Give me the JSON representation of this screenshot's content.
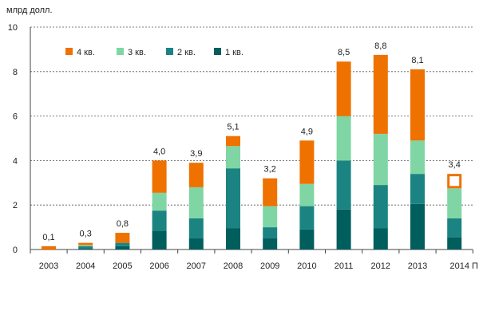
{
  "chart_data": {
    "type": "bar",
    "stacked": true,
    "title": "",
    "ylabel": "млрд долл.",
    "xlabel": "",
    "ylim": [
      0,
      10
    ],
    "yticks": [
      0,
      2,
      4,
      6,
      8,
      10
    ],
    "grid": true,
    "legend_position": "top-left",
    "categories": [
      "2003",
      "2004",
      "2005",
      "2006",
      "2007",
      "2008",
      "2009",
      "2010",
      "2011",
      "2012",
      "2013",
      "2014 П"
    ],
    "totals_labels": [
      "0,1",
      "0,3",
      "0,8",
      "4,0",
      "3,9",
      "5,1",
      "3,2",
      "4,9",
      "8,5",
      "8,8",
      "8,1",
      "3,4"
    ],
    "series": [
      {
        "name": "1 кв.",
        "color": "#005e5d",
        "values": [
          0.0,
          0.05,
          0.15,
          0.85,
          0.5,
          0.95,
          0.5,
          0.9,
          1.8,
          0.95,
          2.05,
          0.55
        ]
      },
      {
        "name": "2 кв.",
        "color": "#1b8482",
        "values": [
          0.0,
          0.1,
          0.15,
          0.9,
          0.9,
          2.7,
          0.5,
          1.05,
          2.2,
          1.95,
          1.35,
          0.85
        ]
      },
      {
        "name": "3 кв.",
        "color": "#7fd6a4",
        "values": [
          0.0,
          0.05,
          0.0,
          0.8,
          1.4,
          1.0,
          0.95,
          1.0,
          2.0,
          2.3,
          1.5,
          1.35
        ]
      },
      {
        "name": "4 кв.",
        "color": "#ef7100",
        "values": [
          0.15,
          0.1,
          0.45,
          1.45,
          1.1,
          0.45,
          1.25,
          1.95,
          2.45,
          3.55,
          3.2,
          0.65
        ]
      }
    ],
    "last_bar_q4_outline_only": true
  }
}
